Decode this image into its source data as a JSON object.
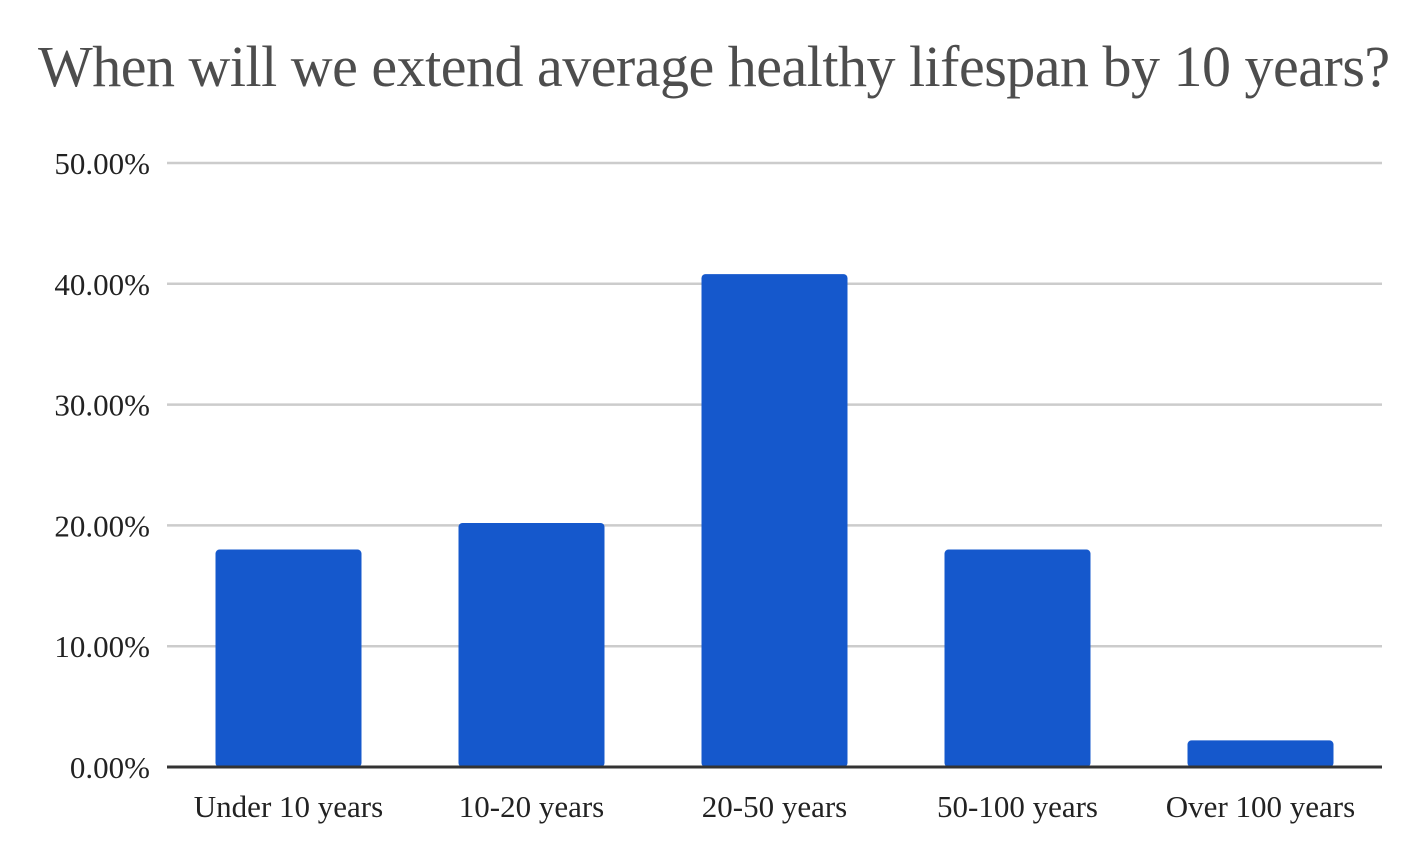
{
  "chart_data": {
    "type": "bar",
    "title": "When will we extend average healthy lifespan by 10 years?",
    "categories": [
      "Under 10 years",
      "10-20 years",
      "20-50 years",
      "50-100 years",
      "Over 100 years"
    ],
    "values": [
      18.0,
      20.2,
      40.8,
      18.0,
      2.2
    ],
    "ylim": [
      0,
      50
    ],
    "yticks": [
      "0.00%",
      "10.00%",
      "20.00%",
      "30.00%",
      "40.00%",
      "50.00%"
    ],
    "ytick_values": [
      0,
      10,
      20,
      30,
      40,
      50
    ],
    "xlabel": "",
    "ylabel": "",
    "grid": true,
    "legend": "none",
    "bar_color": "#1558cc",
    "grid_color": "#cccccc",
    "title_color": "#4d4d4d"
  }
}
